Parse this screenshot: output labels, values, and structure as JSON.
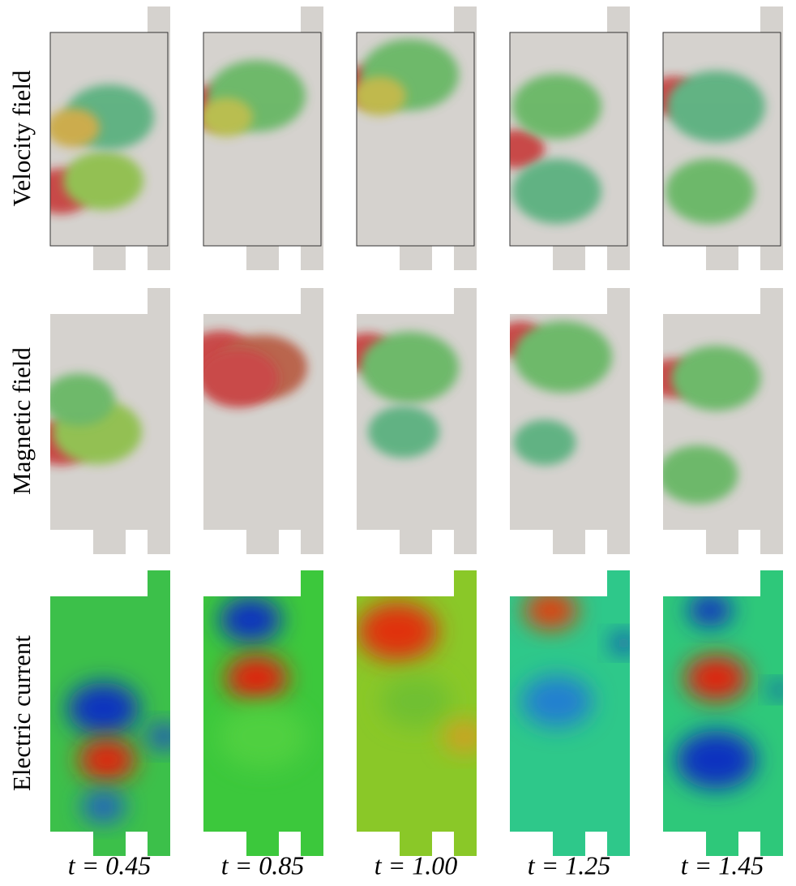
{
  "row_labels": [
    "Velocity field",
    "Magnetic field",
    "Electric current"
  ],
  "column_labels": [
    "t = 0.45",
    "t = 0.85",
    "t = 1.00",
    "t = 1.25",
    "t = 1.45"
  ]
}
